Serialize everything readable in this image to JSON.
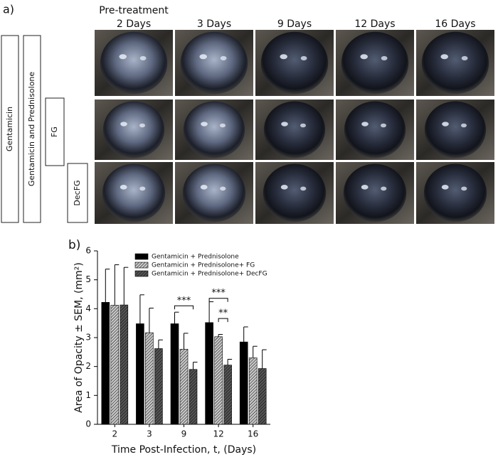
{
  "panel_a": {
    "label": "a)",
    "columns": [
      "Pre-treatment\n2 Days",
      "3 Days",
      "9 Days",
      "12 Days",
      "16 Days"
    ],
    "rows": [
      "Gentamicin",
      "Gentamicin and Prednisolone",
      "FG",
      "DecFG"
    ]
  },
  "chart_data": {
    "type": "bar",
    "panel_label": "b)",
    "x_label": "Time Post-Infection, t, (Days)",
    "y_label": "Area of Opacity ± SEM, (mm²)",
    "categories": [
      "2",
      "3",
      "9",
      "12",
      "16"
    ],
    "series": [
      {
        "name": "Gentamicin + Prednisolone",
        "color": "#000000",
        "hatch": false,
        "values": [
          4.22,
          3.48,
          3.48,
          3.52,
          2.85
        ],
        "errors": [
          1.15,
          1.0,
          0.4,
          0.72,
          0.52
        ]
      },
      {
        "name": "Gentamicin + Prednisolone+ FG",
        "color": "#c8c8c8",
        "hatch": true,
        "values": [
          4.12,
          3.17,
          2.6,
          3.03,
          2.3
        ],
        "errors": [
          1.4,
          0.85,
          0.55,
          0.08,
          0.4
        ]
      },
      {
        "name": "Gentamicin + Prednisolone+ DecFG",
        "color": "#555555",
        "hatch": true,
        "values": [
          4.13,
          2.62,
          1.9,
          2.05,
          1.93
        ],
        "errors": [
          1.3,
          0.3,
          0.25,
          0.2,
          0.65
        ]
      }
    ],
    "ylim": [
      0,
      6
    ],
    "yticks": [
      0,
      1,
      2,
      3,
      4,
      5,
      6
    ],
    "annotations": [
      "***",
      "***",
      "**"
    ],
    "legend": "upper center"
  }
}
